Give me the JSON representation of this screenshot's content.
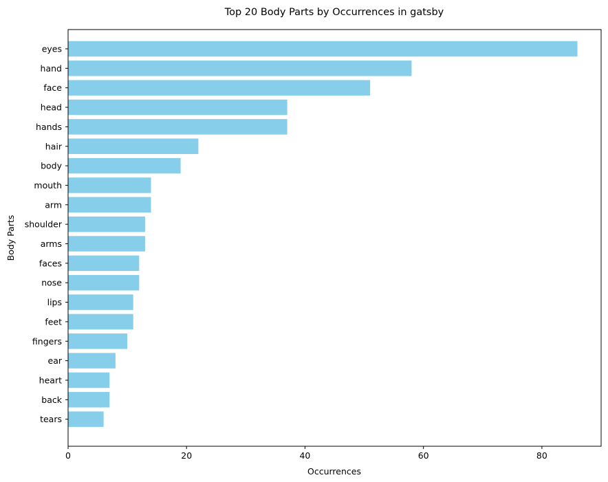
{
  "chart_data": {
    "type": "bar",
    "orientation": "horizontal",
    "title": "Top 20 Body Parts by Occurrences in gatsby",
    "xlabel": "Occurrences",
    "ylabel": "Body Parts",
    "xlim": [
      0,
      90
    ],
    "xticks": [
      "0",
      "20",
      "40",
      "60",
      "80"
    ],
    "grid": false,
    "bar_color": "#87CEEB",
    "categories": [
      "eyes",
      "hand",
      "face",
      "head",
      "hands",
      "hair",
      "body",
      "mouth",
      "arm",
      "shoulder",
      "arms",
      "faces",
      "nose",
      "lips",
      "feet",
      "fingers",
      "ear",
      "heart",
      "back",
      "tears"
    ],
    "values": [
      86,
      58,
      51,
      37,
      37,
      22,
      19,
      14,
      14,
      13,
      13,
      12,
      12,
      11,
      11,
      10,
      8,
      7,
      7,
      6
    ]
  }
}
